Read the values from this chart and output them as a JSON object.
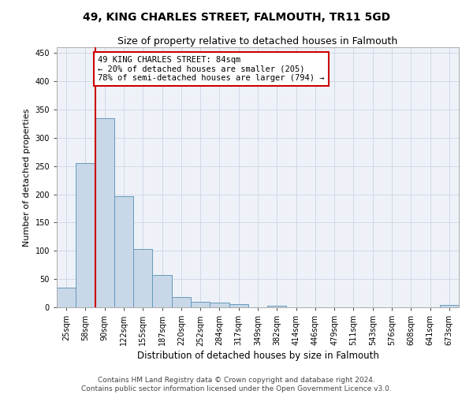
{
  "title": "49, KING CHARLES STREET, FALMOUTH, TR11 5GD",
  "subtitle": "Size of property relative to detached houses in Falmouth",
  "xlabel": "Distribution of detached houses by size in Falmouth",
  "ylabel": "Number of detached properties",
  "bar_values": [
    35,
    255,
    335,
    197,
    103,
    57,
    18,
    10,
    8,
    5,
    0,
    3,
    0,
    0,
    0,
    0,
    0,
    0,
    0,
    0,
    4
  ],
  "bar_labels": [
    "25sqm",
    "58sqm",
    "90sqm",
    "122sqm",
    "155sqm",
    "187sqm",
    "220sqm",
    "252sqm",
    "284sqm",
    "317sqm",
    "349sqm",
    "382sqm",
    "414sqm",
    "446sqm",
    "479sqm",
    "511sqm",
    "543sqm",
    "576sqm",
    "608sqm",
    "641sqm",
    "673sqm"
  ],
  "bar_color": "#c8d8e8",
  "bar_edge_color": "#6699bb",
  "ylim": [
    0,
    460
  ],
  "yticks": [
    0,
    50,
    100,
    150,
    200,
    250,
    300,
    350,
    400,
    450
  ],
  "property_size": 84,
  "vline_x": 1.5,
  "annotation_text": "49 KING CHARLES STREET: 84sqm\n← 20% of detached houses are smaller (205)\n78% of semi-detached houses are larger (794) →",
  "annotation_box_color": "#ffffff",
  "annotation_box_edge_color": "#cc0000",
  "vline_color": "#cc0000",
  "grid_color": "#d0d8e8",
  "background_color": "#eef2f8",
  "footer_text": "Contains HM Land Registry data © Crown copyright and database right 2024.\nContains public sector information licensed under the Open Government Licence v3.0.",
  "title_fontsize": 10,
  "subtitle_fontsize": 9,
  "xlabel_fontsize": 8.5,
  "ylabel_fontsize": 8,
  "tick_fontsize": 7,
  "annotation_fontsize": 7.5,
  "footer_fontsize": 6.5
}
